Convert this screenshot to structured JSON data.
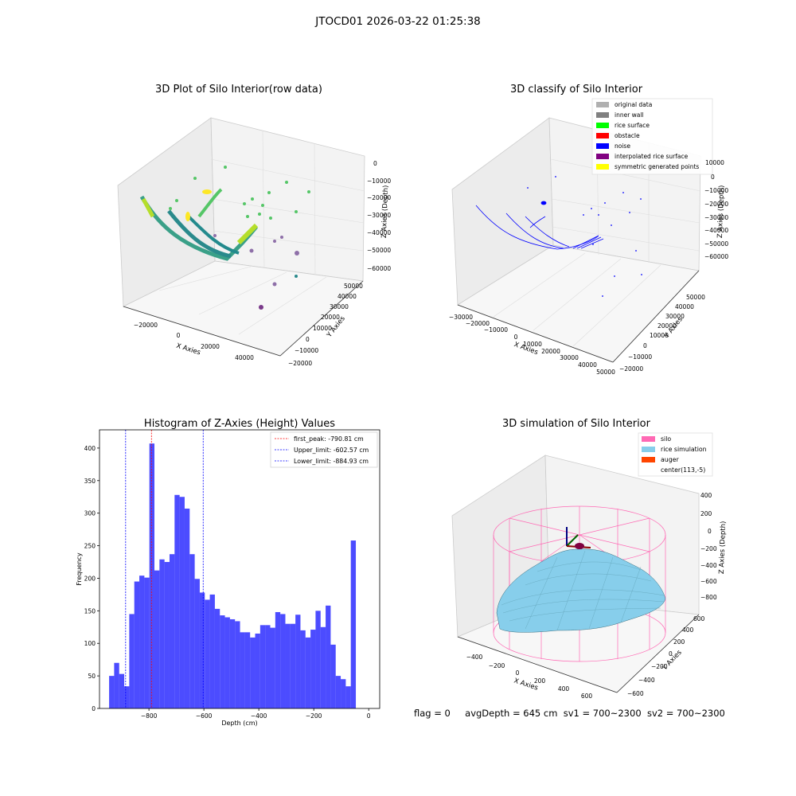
{
  "suptitle": "JTOCD01 2026-03-22 01:25:38",
  "footer": {
    "flag": "flag = 0",
    "avg_depth": "avgDepth = 645 cm",
    "sv1": "sv1 = 700~2300",
    "sv2": "sv2 = 700~2300"
  },
  "panels": {
    "raw": {
      "title": "3D Plot of Silo Interior(row data)",
      "xlabel": "X Axies",
      "ylabel": "Y Axies",
      "zlabel": "Z Axies (Depth)",
      "xticks": [
        "−20000",
        "0",
        "20000",
        "40000"
      ],
      "yticks": [
        "−20000",
        "−10000",
        "0",
        "10000",
        "20000",
        "30000",
        "40000",
        "50000"
      ],
      "zticks": [
        "0",
        "−10000",
        "−20000",
        "−30000",
        "−40000",
        "−50000",
        "−60000"
      ]
    },
    "classify": {
      "title": "3D classify of Silo Interior",
      "xlabel": "X Axies",
      "ylabel": "Y Axies",
      "zlabel": "Z Axies (Depth)",
      "xticks": [
        "−30000",
        "−20000",
        "−10000",
        "0",
        "10000",
        "20000",
        "30000",
        "40000",
        "50000"
      ],
      "yticks": [
        "−20000",
        "−10000",
        "0",
        "10000",
        "20000",
        "30000",
        "40000",
        "50000"
      ],
      "zticks": [
        "10000",
        "0",
        "−10000",
        "−20000",
        "−30000",
        "−40000",
        "−50000",
        "−60000"
      ],
      "legend": [
        {
          "label": "original data",
          "color": "#b0b0b0"
        },
        {
          "label": "inner wall",
          "color": "#808080"
        },
        {
          "label": "rice surface",
          "color": "#00ff00"
        },
        {
          "label": "obstacle",
          "color": "#ff0000"
        },
        {
          "label": "noise",
          "color": "#0000ff"
        },
        {
          "label": "interpolated rice surface",
          "color": "#800080"
        },
        {
          "label": "symmetric generated points",
          "color": "#ffff00"
        }
      ]
    },
    "simulation": {
      "title": "3D simulation of Silo Interior",
      "xlabel": "X Axies",
      "ylabel": "Y Axies",
      "zlabel": "Z Axies (Depth)",
      "xticks": [
        "−400",
        "−200",
        "0",
        "200",
        "400",
        "600"
      ],
      "yticks": [
        "−600",
        "−400",
        "−200",
        "0",
        "200",
        "400",
        "600"
      ],
      "zticks": [
        "400",
        "200",
        "0",
        "−200",
        "−400",
        "−600",
        "−800"
      ],
      "legend": [
        {
          "label": "silo",
          "color": "#ff69b4"
        },
        {
          "label": "rice simulation",
          "color": "#87ceeb"
        },
        {
          "label": "auger",
          "color": "#ff4500"
        },
        {
          "label": "center(113,-5)",
          "color": ""
        }
      ]
    }
  },
  "chart_data": {
    "type": "bar",
    "title": "Histogram of Z-Axies (Height) Values",
    "xlabel": "Depth (cm)",
    "ylabel": "Frequency",
    "xlim": [
      -980,
      40
    ],
    "ylim": [
      0,
      428
    ],
    "xticks": [
      -800,
      -600,
      -400,
      -200,
      0
    ],
    "yticks": [
      0,
      50,
      100,
      150,
      200,
      250,
      300,
      350,
      400
    ],
    "bin_start": -945,
    "bin_width": 18.33,
    "values": [
      50,
      70,
      53,
      34,
      145,
      195,
      204,
      201,
      407,
      212,
      229,
      225,
      237,
      328,
      325,
      307,
      237,
      199,
      178,
      167,
      175,
      153,
      143,
      140,
      137,
      134,
      117,
      117,
      109,
      115,
      128,
      128,
      124,
      148,
      145,
      130,
      130,
      144,
      120,
      109,
      121,
      150,
      125,
      158,
      98,
      50,
      45,
      34,
      258
    ],
    "color": "#0000ff",
    "lines": [
      {
        "label": "first_peak: -790.81 cm",
        "x": -790.81,
        "color": "#ff0000"
      },
      {
        "label": "Upper_limit: -602.57 cm",
        "x": -602.57,
        "color": "#0000ff"
      },
      {
        "label": "Lower_limit: -884.93 cm",
        "x": -884.93,
        "color": "#0000ff"
      }
    ]
  }
}
